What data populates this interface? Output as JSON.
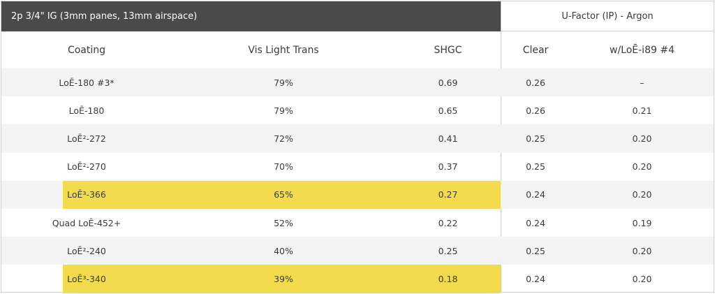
{
  "table": {
    "title": "2p 3/4\" IG (3mm panes, 13mm airspace)",
    "group_header": "U-Factor (IP) - Argon",
    "columns": [
      "Coating",
      "Vis Light Trans",
      "SHGC",
      "Clear",
      "w/LoĒ-i89 #4"
    ],
    "rows": [
      {
        "coating": "LoĒ-180 #3*",
        "vlt": "79%",
        "shgc": "0.69",
        "clear": "0.26",
        "i89": "–"
      },
      {
        "coating": "LoĒ-180",
        "vlt": "79%",
        "shgc": "0.65",
        "clear": "0.26",
        "i89": "0.21"
      },
      {
        "coating": "LoĒ²-272",
        "vlt": "72%",
        "shgc": "0.41",
        "clear": "0.25",
        "i89": "0.20"
      },
      {
        "coating": "LoĒ²-270",
        "vlt": "70%",
        "shgc": "0.37",
        "clear": "0.25",
        "i89": "0.20"
      },
      {
        "coating": "LoĒ³-366",
        "vlt": "65%",
        "shgc": "0.27",
        "clear": "0.24",
        "i89": "0.20"
      },
      {
        "coating": "Quad LoĒ-452+",
        "vlt": "52%",
        "shgc": "0.22",
        "clear": "0.24",
        "i89": "0.19"
      },
      {
        "coating": "LoĒ²-240",
        "vlt": "40%",
        "shgc": "0.25",
        "clear": "0.25",
        "i89": "0.20"
      },
      {
        "coating": "LoĒ³-340",
        "vlt": "39%",
        "shgc": "0.18",
        "clear": "0.24",
        "i89": "0.20"
      }
    ],
    "highlight_color": "#f2dc4d"
  }
}
